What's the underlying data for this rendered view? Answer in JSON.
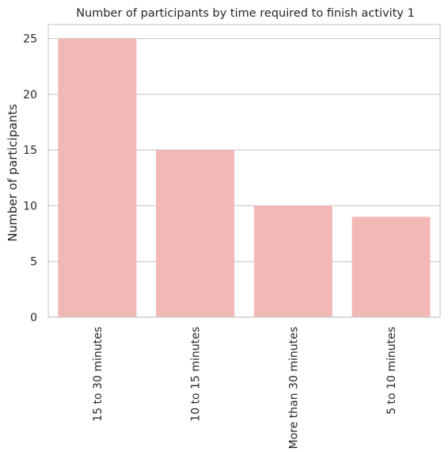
{
  "chart_data": {
    "type": "bar",
    "title": "Number of participants by time required to finish activity 1",
    "xlabel": "",
    "ylabel": "Number of participants",
    "categories": [
      "15 to 30 minutes",
      "10 to 15 minutes",
      "More than 30 minutes",
      "5 to 10 minutes"
    ],
    "values": [
      25,
      15,
      10,
      9
    ],
    "ylim": [
      0,
      26.25
    ],
    "yticks": [
      0,
      5,
      10,
      15,
      20,
      25
    ],
    "grid": "horizontal",
    "bar_color": "#f2b8b5",
    "grid_color": "#cccccc",
    "frame_color": "#cccccc"
  }
}
